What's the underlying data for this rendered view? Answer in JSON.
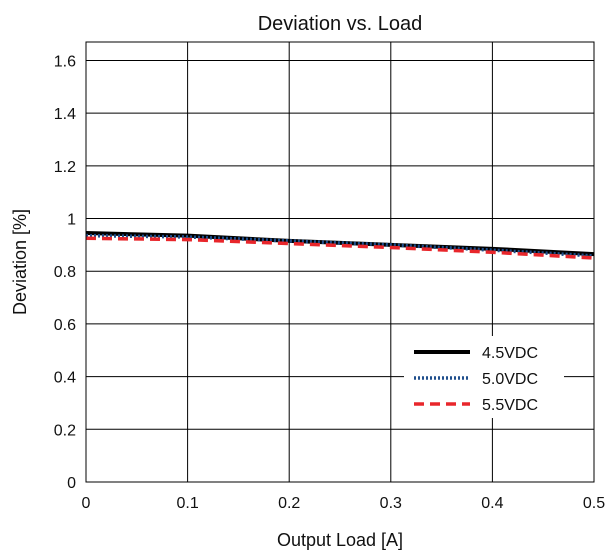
{
  "chart_data": {
    "type": "line",
    "title": "Deviation vs. Load",
    "xlabel": "Output Load [A]",
    "ylabel": "Deviation [%]",
    "xlim": [
      0,
      0.5
    ],
    "ylim": [
      0,
      1.67
    ],
    "x_ticks": [
      0,
      0.1,
      0.2,
      0.3,
      0.4,
      0.5
    ],
    "y_ticks": [
      0,
      0.2,
      0.4,
      0.6,
      0.8,
      1,
      1.2,
      1.4,
      1.6
    ],
    "x_tick_labels": [
      "0",
      "0.1",
      "0.2",
      "0.3",
      "0.4",
      "0.5"
    ],
    "y_tick_labels": [
      "0",
      "0.2",
      "0.4",
      "0.6",
      "0.8",
      "1",
      "1.2",
      "1.4",
      "1.6"
    ],
    "grid": true,
    "legend_position": "bottom-right",
    "x": [
      0,
      0.1,
      0.2,
      0.3,
      0.4,
      0.5
    ],
    "series": [
      {
        "name": "4.5VDC",
        "color": "#000000",
        "style": "solid",
        "values": [
          0.945,
          0.935,
          0.915,
          0.9,
          0.885,
          0.865
        ]
      },
      {
        "name": "5.0VDC",
        "color": "#1f4e8c",
        "style": "dotted",
        "values": [
          0.935,
          0.93,
          0.915,
          0.9,
          0.88,
          0.858
        ]
      },
      {
        "name": "5.5VDC",
        "color": "#e8262b",
        "style": "dashed",
        "values": [
          0.925,
          0.92,
          0.905,
          0.89,
          0.872,
          0.85
        ]
      }
    ]
  }
}
